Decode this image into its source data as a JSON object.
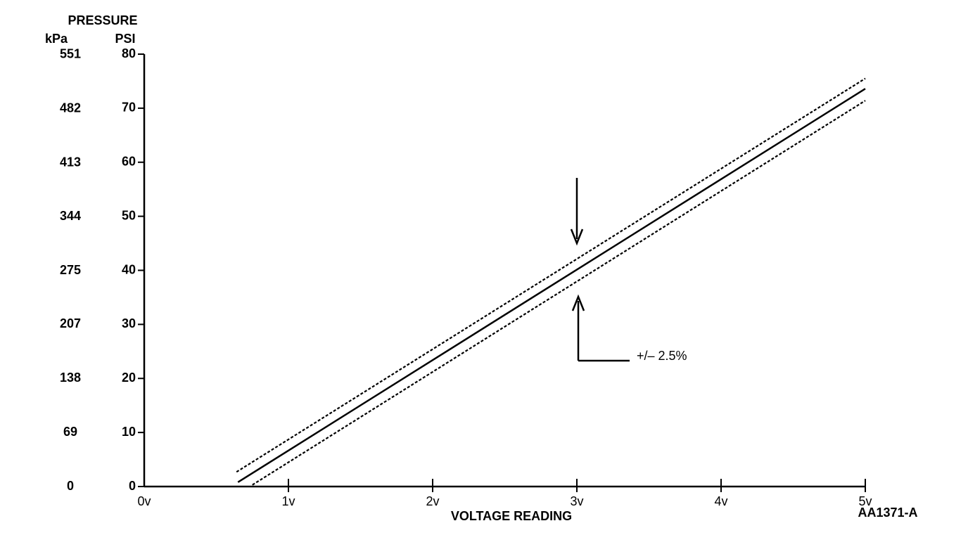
{
  "chart_data": {
    "type": "line",
    "title": "PRESSURE",
    "y_label": "PSI",
    "y2_label": "kPa",
    "x_label": "VOLTAGE READING",
    "figure_id": "AA1371-A",
    "annotation": "+/– 2.5%",
    "xlim": [
      0,
      5
    ],
    "xticks": [
      {
        "value": 0,
        "label": "0v"
      },
      {
        "value": 1,
        "label": "1v"
      },
      {
        "value": 2,
        "label": "2v"
      },
      {
        "value": 3,
        "label": "3v"
      },
      {
        "value": 4,
        "label": "4v"
      },
      {
        "value": 5,
        "label": "5v"
      }
    ],
    "ylim": [
      0,
      80
    ],
    "yticks": [
      0,
      10,
      20,
      30,
      40,
      50,
      60,
      70,
      80
    ],
    "y2lim": [
      0,
      551.6
    ],
    "y2ticks": [
      0,
      69,
      138,
      207,
      275,
      344,
      413,
      482,
      551
    ],
    "series": [
      {
        "color": "#000000",
        "style": "dashed",
        "x": [
          0.64,
          5
        ],
        "values": [
          2.7,
          75.5
        ]
      },
      {
        "color": "#000000",
        "style": "solid",
        "x": [
          0.65,
          5
        ],
        "values": [
          0.8,
          73.6
        ]
      },
      {
        "color": "#000000",
        "style": "dashed",
        "x": [
          0.75,
          5
        ],
        "values": [
          0.3,
          71.4
        ]
      }
    ]
  }
}
